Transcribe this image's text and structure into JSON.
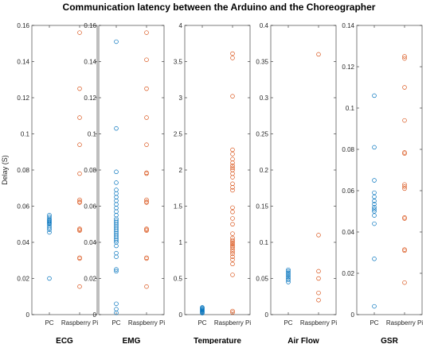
{
  "chart_data": {
    "type": "scatter",
    "title": "Communication latency between the Arduino and the Choreographer",
    "ylabel": "Delay (S)",
    "categories": [
      "PC",
      "Raspberry Pi"
    ],
    "colors": {
      "PC": "#0072bd",
      "Raspberry Pi": "#d95319"
    },
    "marker": "open-circle",
    "grid": false,
    "legend": "none",
    "panels": [
      {
        "name": "ECG",
        "ylim": [
          0,
          0.16
        ],
        "yticks": [
          "0",
          "0.02",
          "0.04",
          "0.06",
          "0.08",
          "0.1",
          "0.12",
          "0.14",
          "0.16"
        ],
        "yticks_values": [
          0,
          0.02,
          0.04,
          0.06,
          0.08,
          0.1,
          0.12,
          0.14,
          0.16
        ],
        "series": [
          {
            "name": "PC",
            "values": [
              0.0455,
              0.047,
              0.048,
              0.049,
              0.05,
              0.0505,
              0.051,
              0.0515,
              0.052,
              0.0525,
              0.053,
              0.054,
              0.055,
              0.02
            ]
          },
          {
            "name": "Raspberry Pi",
            "values": [
              0.156,
              0.125,
              0.109,
              0.094,
              0.078,
              0.0635,
              0.0625,
              0.062,
              0.0475,
              0.047,
              0.0465,
              0.0315,
              0.031,
              0.0155
            ]
          }
        ]
      },
      {
        "name": "EMG",
        "ylim": [
          0,
          0.16
        ],
        "yticks": [
          "0",
          "0.02",
          "0.04",
          "0.06",
          "0.08",
          "0.1",
          "0.12",
          "0.14",
          "0.16"
        ],
        "yticks_values": [
          0,
          0.02,
          0.04,
          0.06,
          0.08,
          0.1,
          0.12,
          0.14,
          0.16
        ],
        "series": [
          {
            "name": "PC",
            "values": [
              0.151,
              0.103,
              0.079,
              0.073,
              0.069,
              0.067,
              0.065,
              0.063,
              0.061,
              0.059,
              0.057,
              0.055,
              0.053,
              0.052,
              0.051,
              0.05,
              0.049,
              0.048,
              0.047,
              0.046,
              0.045,
              0.044,
              0.043,
              0.042,
              0.041,
              0.04,
              0.038,
              0.034,
              0.032,
              0.025,
              0.024,
              0.006,
              0.003,
              0.001
            ]
          },
          {
            "name": "Raspberry Pi",
            "values": [
              0.156,
              0.141,
              0.125,
              0.109,
              0.094,
              0.0785,
              0.078,
              0.0635,
              0.0625,
              0.062,
              0.0475,
              0.047,
              0.0465,
              0.0315,
              0.031,
              0.0155
            ]
          }
        ]
      },
      {
        "name": "Temperature",
        "ylim": [
          0,
          4
        ],
        "yticks": [
          "0",
          "0.5",
          "1",
          "1.5",
          "2",
          "2.5",
          "3",
          "3.5",
          "4"
        ],
        "yticks_values": [
          0,
          0.5,
          1,
          1.5,
          2,
          2.5,
          3,
          3.5,
          4
        ],
        "series": [
          {
            "name": "PC",
            "values": [
              0.02,
              0.03,
              0.04,
              0.05,
              0.06,
              0.07,
              0.08,
              0.09,
              0.1
            ]
          },
          {
            "name": "Raspberry Pi",
            "values": [
              3.61,
              3.55,
              3.02,
              2.28,
              2.22,
              2.15,
              2.1,
              2.06,
              2.03,
              2.0,
              1.95,
              1.9,
              1.81,
              1.76,
              1.72,
              1.48,
              1.42,
              1.33,
              1.25,
              1.12,
              1.06,
              1.03,
              1.01,
              0.99,
              0.97,
              0.95,
              0.93,
              0.9,
              0.87,
              0.84,
              0.8,
              0.76,
              0.7,
              0.55,
              0.05,
              0.03
            ]
          }
        ]
      },
      {
        "name": "Air Flow",
        "ylim": [
          0,
          0.4
        ],
        "yticks": [
          "0",
          "0.05",
          "0.1",
          "0.15",
          "0.2",
          "0.25",
          "0.3",
          "0.35",
          "0.4"
        ],
        "yticks_values": [
          0,
          0.05,
          0.1,
          0.15,
          0.2,
          0.25,
          0.3,
          0.35,
          0.4
        ],
        "series": [
          {
            "name": "PC",
            "values": [
              0.045,
              0.048,
              0.05,
              0.052,
              0.054,
              0.056,
              0.058,
              0.06,
              0.062
            ]
          },
          {
            "name": "Raspberry Pi",
            "values": [
              0.36,
              0.11,
              0.06,
              0.05,
              0.03,
              0.02
            ]
          }
        ]
      },
      {
        "name": "GSR",
        "ylim": [
          0,
          0.14
        ],
        "yticks": [
          "0",
          "0.02",
          "0.04",
          "0.06",
          "0.08",
          "0.1",
          "0.12",
          "0.14"
        ],
        "yticks_values": [
          0,
          0.02,
          0.04,
          0.06,
          0.08,
          0.1,
          0.12,
          0.14
        ],
        "series": [
          {
            "name": "PC",
            "values": [
              0.106,
              0.081,
              0.065,
              0.059,
              0.057,
              0.055,
              0.0535,
              0.052,
              0.051,
              0.05,
              0.048,
              0.044,
              0.027,
              0.004
            ]
          },
          {
            "name": "Raspberry Pi",
            "values": [
              0.125,
              0.124,
              0.11,
              0.094,
              0.0785,
              0.078,
              0.063,
              0.062,
              0.061,
              0.047,
              0.0465,
              0.0315,
              0.031,
              0.0155
            ]
          }
        ]
      }
    ]
  }
}
